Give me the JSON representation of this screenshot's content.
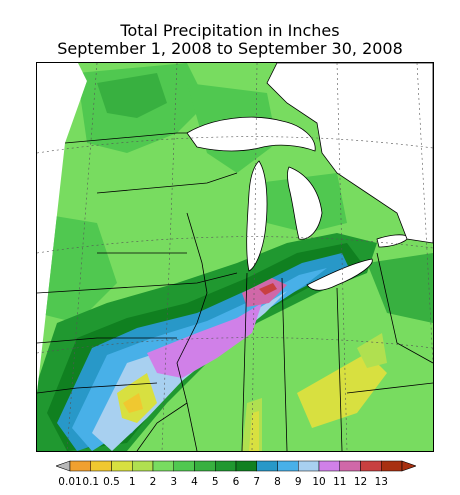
{
  "title": {
    "line1": "Total Precipitation in Inches",
    "line2": "September 1, 2008 to September 30, 2008"
  },
  "map": {
    "region": "Upper Midwest / Great Lakes",
    "colors": {
      "water_and_outside": "#ffffff",
      "boundary_lines": "#000000",
      "grid_lines": "#555555"
    }
  },
  "legend": {
    "labels": [
      "0.01",
      "0.1",
      "0.5",
      "1",
      "2",
      "3",
      "4",
      "5",
      "6",
      "7",
      "8",
      "9",
      "10",
      "11",
      "12",
      "13"
    ],
    "colors": [
      "#f0a030",
      "#f0c830",
      "#d8e040",
      "#b0e050",
      "#78dc60",
      "#50c850",
      "#38b040",
      "#209830",
      "#108020",
      "#2898c8",
      "#48b0e8",
      "#a8d0f0",
      "#d080e8",
      "#d068a8",
      "#c84040",
      "#a83010"
    ],
    "low_cap_color": "#b8b8b8",
    "high_cap_color": "#a83010"
  }
}
